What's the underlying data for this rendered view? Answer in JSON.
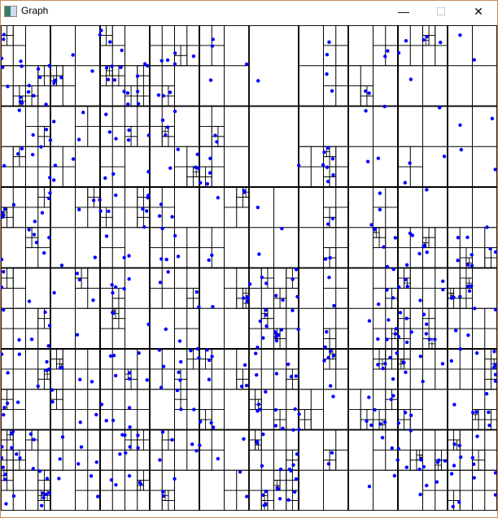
{
  "window": {
    "title": "Graph",
    "border_color": "#c98a5e",
    "controls": {
      "minimize": "—",
      "maximize": "☐",
      "close": "✕"
    }
  },
  "graph": {
    "description_type": "quadtree",
    "point_color": "#0000ff",
    "line_color": "#000000"
  }
}
